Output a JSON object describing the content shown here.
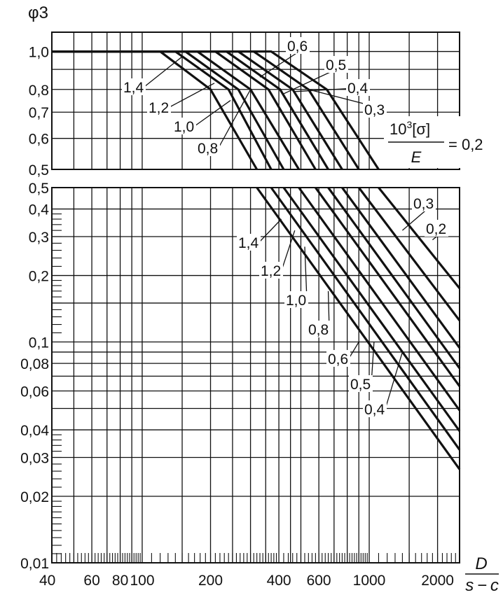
{
  "chart_data": [
    {
      "type": "line",
      "panel": "upper",
      "title": "",
      "ylabel": "φ3",
      "xlabel": "D / (s − c)",
      "xscale": "log",
      "yscale": "log",
      "xlim": [
        40,
        2500
      ],
      "ylim": [
        0.5,
        1.12
      ],
      "grid": true,
      "x_ticks": [
        40,
        60,
        80,
        100,
        200,
        400,
        600,
        1000,
        2000
      ],
      "x_tick_labels": [
        "40",
        "60",
        "80",
        "100",
        "200",
        "400",
        "600",
        "1000",
        "2000"
      ],
      "y_ticks": [
        0.5,
        0.6,
        0.7,
        0.8,
        1.0
      ],
      "y_tick_labels": [
        "0,5",
        "0,6",
        "0,7",
        "0,8",
        "1,0"
      ],
      "parameter_label": {
        "numerator": "10",
        "exponent": "3",
        "sigma": "[σ]",
        "denominator": "E",
        "equals": "= 0,2"
      },
      "series": [
        {
          "name": "1,4",
          "param": 1.4,
          "points": [
            [
              40,
              1.0
            ],
            [
              120,
              1.0
            ],
            [
              200,
              0.8
            ],
            [
              320,
              0.5
            ]
          ]
        },
        {
          "name": "1,2",
          "param": 1.2,
          "points": [
            [
              40,
              1.0
            ],
            [
              140,
              1.0
            ],
            [
              240,
              0.8
            ],
            [
              370,
              0.5
            ]
          ]
        },
        {
          "name": "1,0",
          "param": 1.0,
          "points": [
            [
              40,
              1.0
            ],
            [
              155,
              1.0
            ],
            [
              265,
              0.8
            ],
            [
              420,
              0.5
            ]
          ]
        },
        {
          "name": "0,8",
          "param": 0.8,
          "points": [
            [
              40,
              1.0
            ],
            [
              175,
              1.0
            ],
            [
              300,
              0.8
            ],
            [
              490,
              0.5
            ]
          ]
        },
        {
          "name": "0,6",
          "param": 0.6,
          "points": [
            [
              40,
              1.0
            ],
            [
              210,
              1.0
            ],
            [
              360,
              0.8
            ],
            [
              580,
              0.5
            ]
          ]
        },
        {
          "name": "0,5",
          "param": 0.5,
          "points": [
            [
              40,
              1.0
            ],
            [
              235,
              1.0
            ],
            [
              405,
              0.8
            ],
            [
              660,
              0.5
            ]
          ]
        },
        {
          "name": "0,4",
          "param": 0.4,
          "points": [
            [
              40,
              1.0
            ],
            [
              265,
              1.0
            ],
            [
              460,
              0.8
            ],
            [
              760,
              0.5
            ]
          ]
        },
        {
          "name": "0,3",
          "param": 0.3,
          "points": [
            [
              40,
              1.0
            ],
            [
              310,
              1.0
            ],
            [
              540,
              0.8
            ],
            [
              900,
              0.5
            ]
          ]
        },
        {
          "name": "0,2",
          "param": 0.2,
          "points": [
            [
              40,
              1.0
            ],
            [
              370,
              1.0
            ],
            [
              650,
              0.8
            ],
            [
              1100,
              0.5
            ]
          ]
        }
      ]
    },
    {
      "type": "line",
      "panel": "lower",
      "title": "",
      "xscale": "log",
      "yscale": "log",
      "xlim": [
        40,
        2500
      ],
      "ylim": [
        0.01,
        0.5
      ],
      "grid": true,
      "y_ticks": [
        0.01,
        0.02,
        0.03,
        0.04,
        0.06,
        0.08,
        0.1,
        0.2,
        0.3,
        0.4,
        0.5
      ],
      "y_tick_labels": [
        "0,01",
        "0,02",
        "0,03",
        "0,04",
        "0,06",
        "0,08",
        "0,1",
        "0,2",
        "0,3",
        "0,4",
        "0,5"
      ],
      "series": [
        {
          "name": "1,4",
          "param": 1.4,
          "points": [
            [
              320,
              0.5
            ],
            [
              2500,
              0.0265
            ]
          ]
        },
        {
          "name": "1,2",
          "param": 1.2,
          "points": [
            [
              370,
              0.5
            ],
            [
              2500,
              0.0325
            ]
          ]
        },
        {
          "name": "1,0",
          "param": 1.0,
          "points": [
            [
              420,
              0.5
            ],
            [
              2500,
              0.0395
            ]
          ]
        },
        {
          "name": "0,8",
          "param": 0.8,
          "points": [
            [
              490,
              0.5
            ],
            [
              2500,
              0.049
            ]
          ]
        },
        {
          "name": "0,6",
          "param": 0.6,
          "points": [
            [
              580,
              0.5
            ],
            [
              2500,
              0.063
            ]
          ]
        },
        {
          "name": "0,5",
          "param": 0.5,
          "points": [
            [
              660,
              0.5
            ],
            [
              2500,
              0.076
            ]
          ]
        },
        {
          "name": "0,4",
          "param": 0.4,
          "points": [
            [
              760,
              0.5
            ],
            [
              2500,
              0.094
            ]
          ]
        },
        {
          "name": "0,3",
          "param": 0.3,
          "points": [
            [
              900,
              0.5
            ],
            [
              2500,
              0.125
            ]
          ]
        },
        {
          "name": "0,2",
          "param": 0.2,
          "points": [
            [
              1100,
              0.5
            ],
            [
              2500,
              0.175
            ]
          ]
        }
      ]
    }
  ]
}
